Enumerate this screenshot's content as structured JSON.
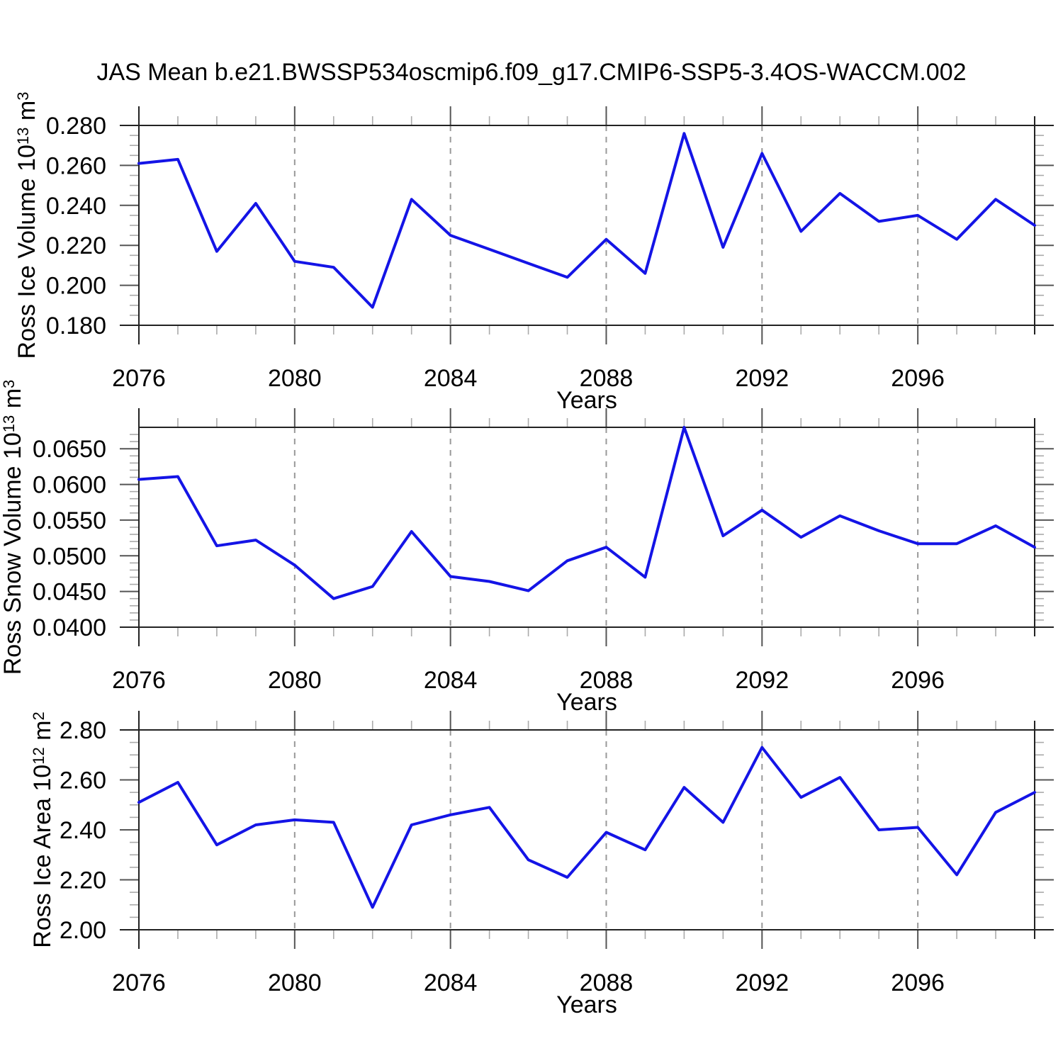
{
  "title": "JAS Mean b.e21.BWSSP534oscmip6.f09_g17.CMIP6-SSP5-3.4OS-WACCM.002",
  "colors": {
    "line": "#1414e6",
    "grid": "#999999",
    "axis": "#222222",
    "tick_major": "#555555",
    "tick_minor": "#aaaaaa",
    "text": "#000000"
  },
  "panels": [
    {
      "ylabel": {
        "base": "Ross Ice Volume 10",
        "exp": "13",
        "unit": " m",
        "unit_exp": "3"
      },
      "xlabel": "Years"
    },
    {
      "ylabel": {
        "base": "Ross Snow Volume 10",
        "exp": "13",
        "unit": " m",
        "unit_exp": "3"
      },
      "xlabel": "Years"
    },
    {
      "ylabel": {
        "base": "Ross Ice Area 10",
        "exp": "12",
        "unit": " m",
        "unit_exp": "2"
      },
      "xlabel": "Years"
    }
  ],
  "chart_data": [
    {
      "type": "line",
      "name": "ross-ice-volume",
      "title": "Ross Ice Volume 10^13 m^3",
      "xlabel": "Years",
      "x": [
        2076,
        2077,
        2078,
        2079,
        2080,
        2081,
        2082,
        2083,
        2084,
        2085,
        2086,
        2087,
        2088,
        2089,
        2090,
        2091,
        2092,
        2093,
        2094,
        2095,
        2096,
        2097,
        2098,
        2099
      ],
      "values": [
        0.261,
        0.263,
        0.217,
        0.241,
        0.212,
        0.209,
        0.189,
        0.243,
        0.225,
        0.218,
        0.211,
        0.204,
        0.223,
        0.206,
        0.276,
        0.219,
        0.266,
        0.227,
        0.246,
        0.232,
        0.235,
        0.223,
        0.243,
        0.23
      ],
      "xlim": [
        2076,
        2099
      ],
      "ylim": [
        0.18,
        0.28
      ],
      "y_ticks": [
        {
          "v": 0.28,
          "label": "0.280"
        },
        {
          "v": 0.26,
          "label": "0.260"
        },
        {
          "v": 0.24,
          "label": "0.240"
        },
        {
          "v": 0.22,
          "label": "0.220"
        },
        {
          "v": 0.2,
          "label": "0.200"
        },
        {
          "v": 0.18,
          "label": "0.180"
        }
      ],
      "y_minor_step": 0.005,
      "x_major_ticks": [
        2076,
        2080,
        2084,
        2088,
        2092,
        2096
      ],
      "x_tick_labels": [
        "2076",
        "2080",
        "2084",
        "2088",
        "2092",
        "2096"
      ],
      "grid_years": [
        2080,
        2084,
        2088,
        2092,
        2096
      ],
      "grid_on": true,
      "border_major_top": true,
      "border_major_bottom": true
    },
    {
      "type": "line",
      "name": "ross-snow-volume",
      "title": "Ross Snow Volume 10^13 m^3",
      "xlabel": "Years",
      "x": [
        2076,
        2077,
        2078,
        2079,
        2080,
        2081,
        2082,
        2083,
        2084,
        2085,
        2086,
        2087,
        2088,
        2089,
        2090,
        2091,
        2092,
        2093,
        2094,
        2095,
        2096,
        2097,
        2098,
        2099
      ],
      "values": [
        0.0607,
        0.0611,
        0.0514,
        0.0522,
        0.0487,
        0.044,
        0.0457,
        0.0534,
        0.0471,
        0.0464,
        0.0451,
        0.0493,
        0.0512,
        0.047,
        0.068,
        0.0528,
        0.0564,
        0.0526,
        0.0556,
        0.0535,
        0.0517,
        0.0517,
        0.0542,
        0.0512
      ],
      "xlim": [
        2076,
        2099
      ],
      "ylim": [
        0.04,
        0.068
      ],
      "y_ticks": [
        {
          "v": 0.065,
          "label": "0.0650"
        },
        {
          "v": 0.06,
          "label": "0.0600"
        },
        {
          "v": 0.055,
          "label": "0.0550"
        },
        {
          "v": 0.05,
          "label": "0.0500"
        },
        {
          "v": 0.045,
          "label": "0.0450"
        },
        {
          "v": 0.04,
          "label": "0.0400"
        }
      ],
      "y_minor_step": 0.001,
      "x_major_ticks": [
        2076,
        2080,
        2084,
        2088,
        2092,
        2096
      ],
      "x_tick_labels": [
        "2076",
        "2080",
        "2084",
        "2088",
        "2092",
        "2096"
      ],
      "grid_years": [
        2080,
        2084,
        2088,
        2092,
        2096
      ],
      "grid_on": true,
      "border_major_top": false,
      "border_major_bottom": true
    },
    {
      "type": "line",
      "name": "ross-ice-area",
      "title": "Ross Ice Area 10^12 m^2",
      "xlabel": "Years",
      "x": [
        2076,
        2077,
        2078,
        2079,
        2080,
        2081,
        2082,
        2083,
        2084,
        2085,
        2086,
        2087,
        2088,
        2089,
        2090,
        2091,
        2092,
        2093,
        2094,
        2095,
        2096,
        2097,
        2098,
        2099
      ],
      "values": [
        2.51,
        2.59,
        2.34,
        2.42,
        2.44,
        2.43,
        2.09,
        2.42,
        2.46,
        2.49,
        2.28,
        2.21,
        2.39,
        2.32,
        2.57,
        2.43,
        2.73,
        2.53,
        2.61,
        2.4,
        2.41,
        2.22,
        2.47,
        2.55
      ],
      "xlim": [
        2076,
        2099
      ],
      "ylim": [
        2.0,
        2.8
      ],
      "y_ticks": [
        {
          "v": 2.8,
          "label": "2.80"
        },
        {
          "v": 2.6,
          "label": "2.60"
        },
        {
          "v": 2.4,
          "label": "2.40"
        },
        {
          "v": 2.2,
          "label": "2.20"
        },
        {
          "v": 2.0,
          "label": "2.00"
        }
      ],
      "y_minor_step": 0.05,
      "x_major_ticks": [
        2076,
        2080,
        2084,
        2088,
        2092,
        2096
      ],
      "x_tick_labels": [
        "2076",
        "2080",
        "2084",
        "2088",
        "2092",
        "2096"
      ],
      "grid_years": [
        2080,
        2084,
        2088,
        2092,
        2096
      ],
      "grid_on": true,
      "border_major_top": true,
      "border_major_bottom": true
    }
  ]
}
